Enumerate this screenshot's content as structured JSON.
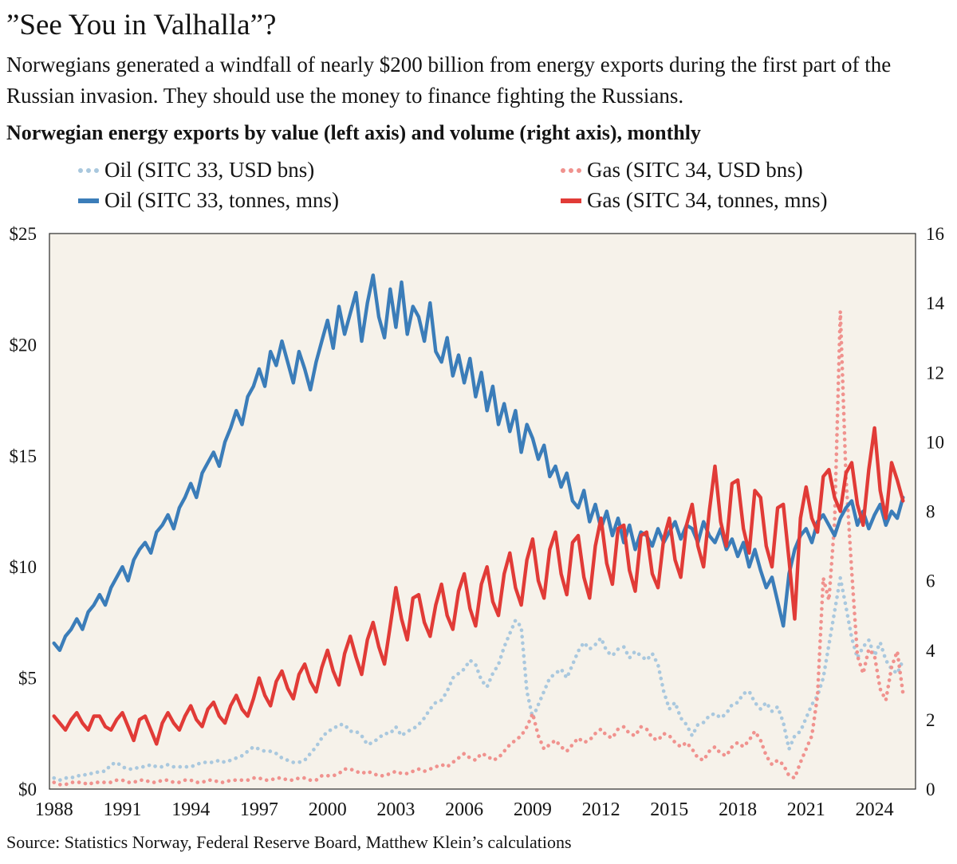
{
  "header": {
    "title": "”See You in Valhalla”?",
    "subtitle": "Norwegians generated a windfall of nearly $200 billion from energy exports during the first part of the Russian invasion. They should use the money to finance fighting the Russians.",
    "chart_heading": "Norwegian energy exports by value (left axis) and volume (right axis), monthly"
  },
  "source_note": "Source: Statistics Norway, Federal Reserve Board, Matthew Klein’s calculations",
  "chart_data": {
    "type": "line",
    "title": "Norwegian energy exports by value (left axis) and volume (right axis), monthly",
    "plot_bg": "#f6f2ea",
    "grid": false,
    "legend_position": "top",
    "x_start": 1988.0,
    "x_step": 0.25,
    "x_axis": {
      "min": 1987.8,
      "max": 2025.8,
      "tick_values": [
        1988,
        1991,
        1994,
        1997,
        2000,
        2003,
        2006,
        2009,
        2012,
        2015,
        2018,
        2021,
        2024
      ],
      "tick_labels": [
        "1988",
        "1991",
        "1994",
        "1997",
        "2000",
        "2003",
        "2006",
        "2009",
        "2012",
        "2015",
        "2018",
        "2021",
        "2024"
      ]
    },
    "left_axis": {
      "min": 0,
      "max": 25,
      "tick_values": [
        0,
        5,
        10,
        15,
        20,
        25
      ],
      "tick_labels": [
        "$0",
        "$5",
        "$10",
        "$15",
        "$20",
        "$25"
      ]
    },
    "right_axis": {
      "min": 0,
      "max": 16,
      "tick_values": [
        0,
        2,
        4,
        6,
        8,
        10,
        12,
        14,
        16
      ],
      "tick_labels": [
        "0",
        "2",
        "4",
        "6",
        "8",
        "10",
        "12",
        "14",
        "16"
      ]
    },
    "series": [
      {
        "name": "Oil (SITC 33, USD bns)",
        "axis": "left",
        "style": "dotted",
        "color": "#a9c8de",
        "values": [
          0.5,
          0.4,
          0.5,
          0.5,
          0.6,
          0.6,
          0.7,
          0.7,
          0.8,
          0.8,
          1.1,
          1.2,
          1.0,
          0.9,
          0.9,
          1.0,
          1.0,
          1.1,
          1.0,
          1.0,
          1.1,
          1.0,
          1.0,
          1.0,
          1.0,
          1.1,
          1.2,
          1.2,
          1.2,
          1.3,
          1.2,
          1.3,
          1.4,
          1.5,
          1.7,
          1.9,
          1.8,
          1.7,
          1.7,
          1.6,
          1.4,
          1.3,
          1.2,
          1.2,
          1.3,
          1.6,
          1.9,
          2.3,
          2.6,
          2.7,
          2.9,
          2.9,
          2.6,
          2.6,
          2.4,
          2.0,
          2.1,
          2.3,
          2.5,
          2.5,
          2.8,
          2.4,
          2.6,
          2.7,
          2.9,
          3.2,
          3.6,
          3.9,
          4.0,
          4.4,
          5.0,
          5.2,
          5.4,
          5.8,
          5.6,
          4.9,
          4.6,
          5.2,
          5.6,
          6.4,
          7.0,
          7.6,
          7.3,
          4.4,
          3.2,
          3.8,
          4.4,
          5.0,
          5.2,
          5.4,
          5.0,
          5.6,
          6.2,
          6.6,
          6.3,
          6.5,
          6.8,
          6.2,
          6.0,
          6.3,
          6.4,
          5.9,
          6.2,
          6.0,
          5.8,
          6.1,
          5.6,
          4.4,
          3.6,
          3.9,
          3.2,
          2.9,
          2.4,
          2.9,
          3.0,
          3.3,
          3.4,
          3.2,
          3.4,
          3.8,
          3.9,
          4.3,
          4.4,
          3.9,
          3.6,
          3.9,
          3.5,
          3.7,
          3.0,
          1.8,
          2.4,
          2.6,
          3.2,
          3.8,
          4.2,
          5.0,
          6.5,
          8.0,
          9.5,
          8.2,
          6.8,
          5.9,
          6.4,
          6.7,
          6.0,
          6.6,
          5.8,
          5.4,
          5.2,
          5.8
        ]
      },
      {
        "name": "Gas (SITC 34, USD bns)",
        "axis": "left",
        "style": "dotted",
        "color": "#f0928e",
        "values": [
          0.3,
          0.2,
          0.2,
          0.3,
          0.3,
          0.3,
          0.2,
          0.3,
          0.3,
          0.3,
          0.3,
          0.4,
          0.4,
          0.3,
          0.3,
          0.4,
          0.4,
          0.3,
          0.3,
          0.4,
          0.4,
          0.3,
          0.3,
          0.4,
          0.4,
          0.3,
          0.3,
          0.4,
          0.4,
          0.3,
          0.3,
          0.4,
          0.4,
          0.4,
          0.4,
          0.5,
          0.5,
          0.4,
          0.4,
          0.5,
          0.5,
          0.4,
          0.4,
          0.5,
          0.5,
          0.4,
          0.4,
          0.6,
          0.6,
          0.6,
          0.7,
          0.9,
          0.9,
          0.8,
          0.7,
          0.8,
          0.7,
          0.6,
          0.6,
          0.7,
          0.8,
          0.7,
          0.7,
          0.8,
          0.9,
          0.8,
          0.9,
          1.0,
          1.1,
          1.0,
          1.2,
          1.4,
          1.6,
          1.4,
          1.3,
          1.6,
          1.5,
          1.3,
          1.4,
          1.7,
          2.0,
          2.2,
          2.4,
          2.8,
          3.4,
          2.4,
          1.8,
          2.0,
          2.2,
          1.9,
          1.7,
          2.0,
          2.3,
          2.1,
          2.2,
          2.5,
          2.7,
          2.4,
          2.3,
          2.7,
          2.8,
          2.5,
          2.4,
          2.8,
          2.7,
          2.3,
          2.2,
          2.5,
          2.4,
          2.1,
          1.9,
          2.1,
          1.8,
          1.4,
          1.3,
          1.7,
          1.9,
          1.6,
          1.5,
          1.9,
          2.1,
          1.9,
          2.2,
          2.6,
          2.2,
          1.5,
          1.1,
          1.3,
          1.1,
          0.6,
          0.5,
          1.2,
          1.8,
          2.4,
          4.2,
          9.5,
          8.5,
          12.0,
          21.5,
          14.0,
          9.8,
          6.0,
          5.2,
          6.3,
          6.0,
          4.5,
          4.0,
          5.5,
          6.2,
          4.3
        ]
      },
      {
        "name": "Oil (SITC 33, tonnes, mns)",
        "axis": "right",
        "style": "solid",
        "color": "#3b7db9",
        "values": [
          4.2,
          4.0,
          4.4,
          4.6,
          4.9,
          4.6,
          5.1,
          5.3,
          5.6,
          5.3,
          5.8,
          6.1,
          6.4,
          6.0,
          6.6,
          6.9,
          7.1,
          6.8,
          7.4,
          7.6,
          7.9,
          7.5,
          8.1,
          8.4,
          8.8,
          8.4,
          9.1,
          9.4,
          9.7,
          9.3,
          10.0,
          10.4,
          10.9,
          10.5,
          11.3,
          11.6,
          12.1,
          11.6,
          12.6,
          12.2,
          12.9,
          12.3,
          11.7,
          12.6,
          12.1,
          11.5,
          12.3,
          12.9,
          13.5,
          12.7,
          13.9,
          13.1,
          13.7,
          14.3,
          12.9,
          14.0,
          14.8,
          13.6,
          13.0,
          14.4,
          13.3,
          14.6,
          13.1,
          13.9,
          13.6,
          12.9,
          14.0,
          12.6,
          12.3,
          13.0,
          11.9,
          12.5,
          11.7,
          12.4,
          11.3,
          12.0,
          10.9,
          11.6,
          10.5,
          11.1,
          10.3,
          10.9,
          9.7,
          10.5,
          10.1,
          9.5,
          9.9,
          9.0,
          9.3,
          8.7,
          9.1,
          8.3,
          8.1,
          8.6,
          7.7,
          8.2,
          7.5,
          8.0,
          7.3,
          7.8,
          7.1,
          7.6,
          6.9,
          7.4,
          7.3,
          7.0,
          7.5,
          7.1,
          7.4,
          7.7,
          7.2,
          7.6,
          7.5,
          7.1,
          7.7,
          7.3,
          7.1,
          7.5,
          6.9,
          7.2,
          6.7,
          7.1,
          6.4,
          6.9,
          6.3,
          5.8,
          6.1,
          5.4,
          4.7,
          6.2,
          6.9,
          7.3,
          7.5,
          7.1,
          7.7,
          7.9,
          7.6,
          7.3,
          7.8,
          8.1,
          8.3,
          7.6,
          8.0,
          7.5,
          7.9,
          8.2,
          7.6,
          8.0,
          7.8,
          8.4
        ]
      },
      {
        "name": "Gas (SITC 34, tonnes, mns)",
        "axis": "right",
        "style": "solid",
        "color": "#e13b37",
        "values": [
          2.1,
          1.9,
          1.7,
          2.0,
          2.2,
          1.9,
          1.7,
          2.1,
          2.1,
          1.8,
          1.7,
          2.0,
          2.2,
          1.8,
          1.4,
          2.0,
          2.1,
          1.7,
          1.3,
          1.9,
          2.2,
          1.9,
          1.7,
          2.1,
          2.4,
          2.0,
          1.8,
          2.3,
          2.5,
          2.1,
          1.9,
          2.4,
          2.7,
          2.3,
          2.1,
          2.6,
          3.2,
          2.7,
          2.4,
          3.1,
          3.4,
          2.9,
          2.6,
          3.3,
          3.6,
          3.1,
          2.8,
          3.5,
          4.0,
          3.4,
          3.0,
          3.9,
          4.4,
          3.8,
          3.3,
          4.3,
          4.8,
          4.1,
          3.6,
          4.7,
          5.8,
          4.9,
          4.3,
          5.5,
          5.6,
          4.8,
          4.4,
          5.3,
          5.9,
          5.0,
          4.6,
          5.7,
          6.2,
          5.2,
          4.7,
          5.9,
          6.4,
          5.4,
          5.0,
          6.2,
          6.8,
          5.8,
          5.3,
          6.6,
          7.2,
          6.0,
          5.5,
          6.9,
          7.4,
          6.2,
          5.6,
          7.1,
          7.3,
          6.1,
          5.5,
          7.0,
          7.8,
          6.5,
          5.9,
          7.5,
          7.6,
          6.3,
          5.7,
          7.3,
          7.4,
          6.2,
          5.8,
          7.2,
          7.8,
          6.6,
          6.1,
          7.6,
          8.2,
          7.0,
          6.4,
          8.0,
          9.3,
          7.7,
          7.0,
          8.8,
          8.9,
          7.5,
          6.8,
          8.6,
          8.4,
          7.0,
          6.4,
          8.1,
          8.2,
          6.6,
          4.9,
          7.8,
          8.7,
          7.8,
          7.4,
          9.0,
          9.2,
          8.4,
          8.0,
          9.1,
          9.4,
          8.2,
          7.6,
          9.2,
          10.4,
          8.6,
          7.8,
          9.4,
          8.9,
          8.3
        ]
      }
    ]
  }
}
